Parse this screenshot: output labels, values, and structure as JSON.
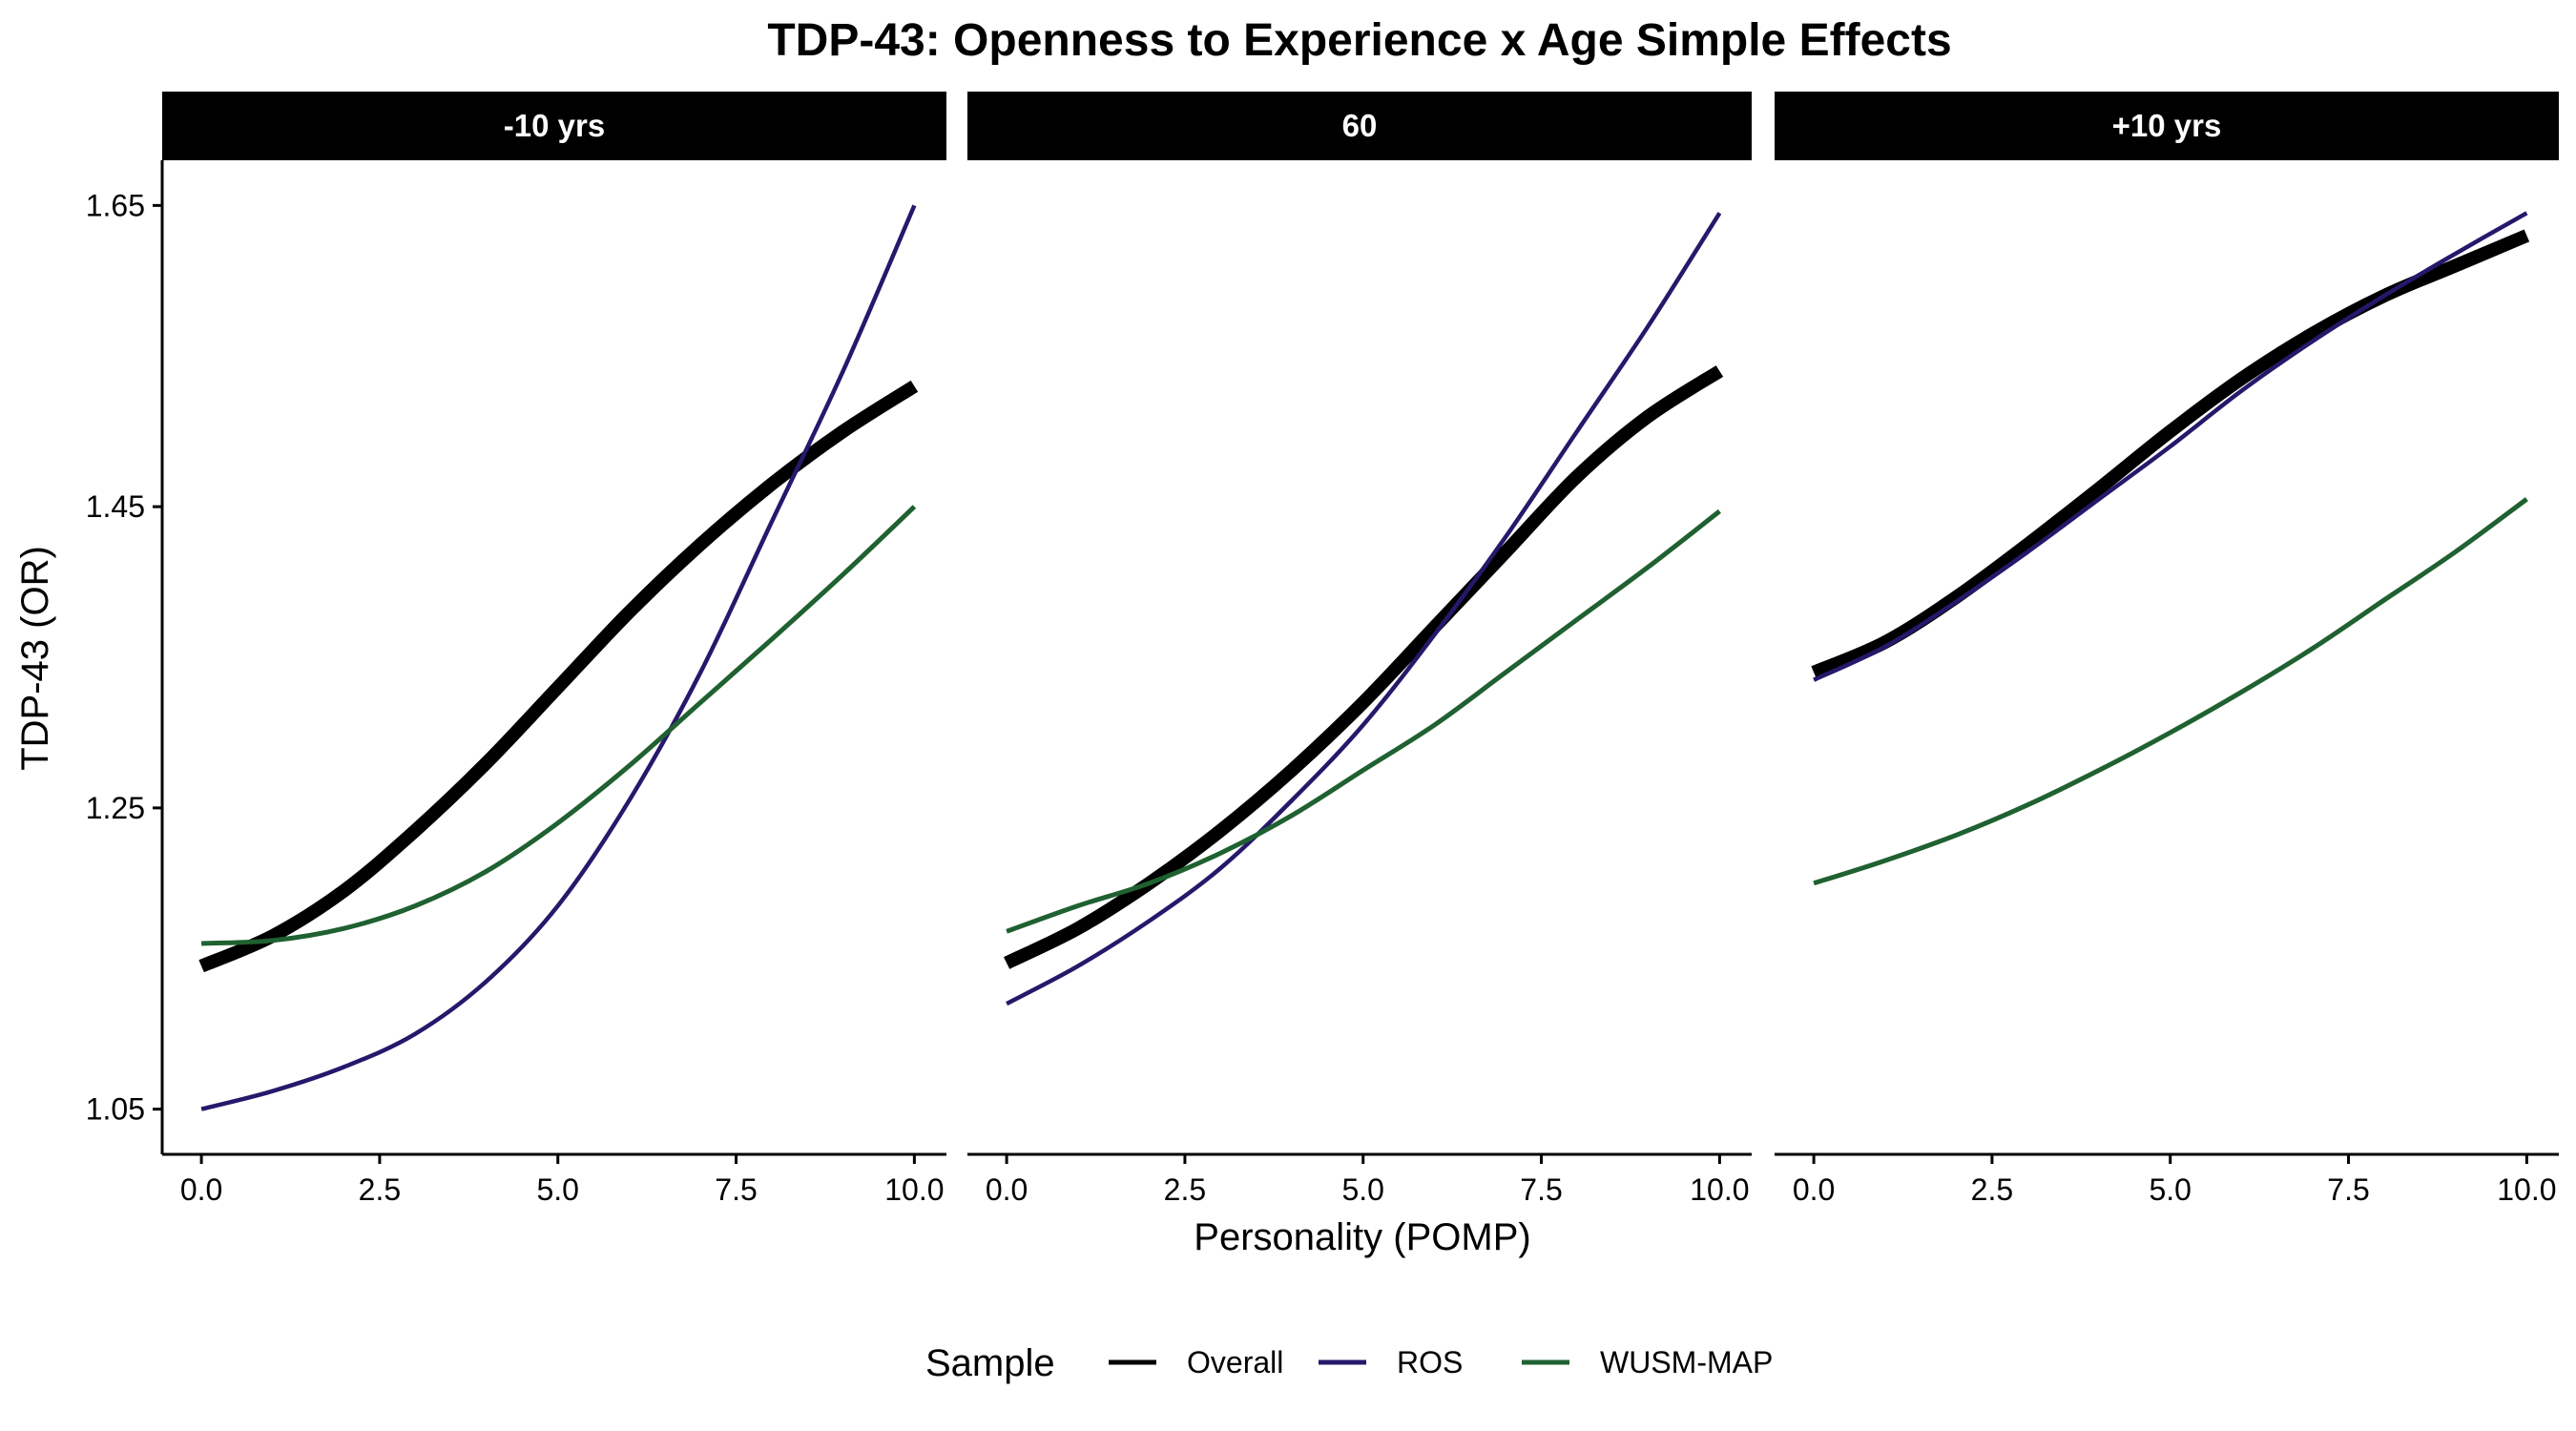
{
  "chart_data": {
    "type": "line",
    "title": "TDP-43: Openness to Experience x Age Simple Effects",
    "xlabel": "Personality (POMP)",
    "ylabel": "TDP-43 (OR)",
    "xlim": [
      -0.55,
      10.45
    ],
    "ylim": [
      1.02,
      1.68
    ],
    "x_ticks": [
      "0.0",
      "2.5",
      "5.0",
      "7.5",
      "10.0"
    ],
    "y_ticks": [
      "1.05",
      "1.25",
      "1.45",
      "1.65"
    ],
    "grid": false,
    "legend": {
      "title": "Sample",
      "position": "bottom",
      "entries": [
        "Overall",
        "ROS",
        "WUSM-MAP"
      ]
    },
    "colors": {
      "Overall": "#000000",
      "ROS": "#26186b",
      "WUSM-MAP": "#1f6130"
    },
    "x": [
      0,
      1,
      2,
      3,
      4,
      5,
      6,
      7,
      8,
      9,
      10
    ],
    "panels": [
      {
        "label": "-10 yrs",
        "series": [
          {
            "name": "Overall",
            "values": [
              1.145,
              1.165,
              1.195,
              1.235,
              1.28,
              1.33,
              1.38,
              1.425,
              1.465,
              1.5,
              1.53
            ]
          },
          {
            "name": "ROS",
            "values": [
              1.05,
              1.062,
              1.078,
              1.1,
              1.135,
              1.185,
              1.255,
              1.34,
              1.44,
              1.54,
              1.65
            ]
          },
          {
            "name": "WUSM-MAP",
            "values": [
              1.16,
              1.162,
              1.17,
              1.185,
              1.208,
              1.24,
              1.278,
              1.32,
              1.362,
              1.405,
              1.45
            ]
          }
        ]
      },
      {
        "label": "60",
        "series": [
          {
            "name": "Overall",
            "values": [
              1.147,
              1.17,
              1.2,
              1.235,
              1.275,
              1.32,
              1.37,
              1.42,
              1.47,
              1.51,
              1.54
            ]
          },
          {
            "name": "ROS",
            "values": [
              1.12,
              1.145,
              1.175,
              1.21,
              1.255,
              1.305,
              1.365,
              1.43,
              1.5,
              1.57,
              1.645
            ]
          },
          {
            "name": "WUSM-MAP",
            "values": [
              1.168,
              1.185,
              1.2,
              1.22,
              1.245,
              1.275,
              1.305,
              1.34,
              1.375,
              1.41,
              1.447
            ]
          }
        ]
      },
      {
        "label": "+10 yrs",
        "series": [
          {
            "name": "Overall",
            "values": [
              1.34,
              1.36,
              1.39,
              1.425,
              1.462,
              1.5,
              1.535,
              1.565,
              1.59,
              1.61,
              1.63
            ]
          },
          {
            "name": "ROS",
            "values": [
              1.335,
              1.357,
              1.387,
              1.42,
              1.455,
              1.49,
              1.527,
              1.56,
              1.59,
              1.618,
              1.645
            ]
          },
          {
            "name": "WUSM-MAP",
            "values": [
              1.2,
              1.215,
              1.232,
              1.252,
              1.275,
              1.3,
              1.327,
              1.356,
              1.388,
              1.42,
              1.455
            ]
          }
        ]
      }
    ]
  }
}
